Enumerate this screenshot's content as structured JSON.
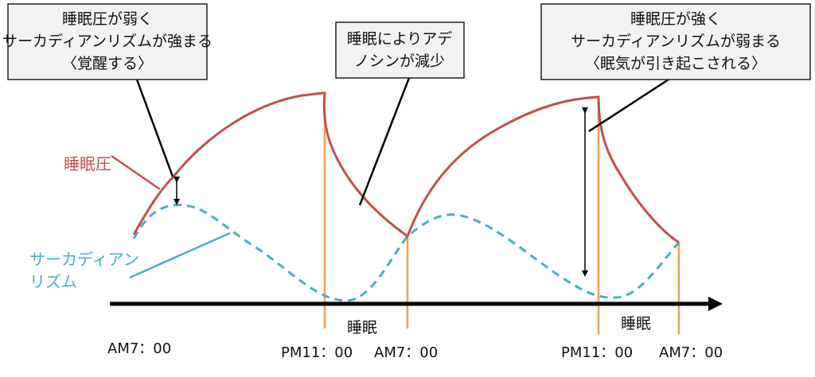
{
  "colors": {
    "sleep_pressure": "#c0504d",
    "circadian": "#4bacc6",
    "sleep_marker": "#f0a050",
    "axis": "#000000",
    "box_fill": "#f2f2f2"
  },
  "callouts": [
    {
      "lines": [
        "睡眠圧が弱く",
        "サーカディアンリズムが強まる",
        "〈覚醒する〉"
      ]
    },
    {
      "lines": [
        "睡眠によりアデ",
        "ノシンが減少"
      ]
    },
    {
      "lines": [
        "睡眠圧が強く",
        "サーカディアンリズムが弱まる",
        "〈眠気が引き起こされる〉"
      ]
    }
  ],
  "legend": {
    "sleep_pressure": "睡眠圧",
    "circadian_line1": "サーカディアン",
    "circadian_line2": "リズム"
  },
  "axis": {
    "times": [
      "AM7：00",
      "PM11：00",
      "AM7：00",
      "PM11：00",
      "AM7：00"
    ],
    "sleep_labels": [
      "睡眠",
      "睡眠"
    ]
  }
}
